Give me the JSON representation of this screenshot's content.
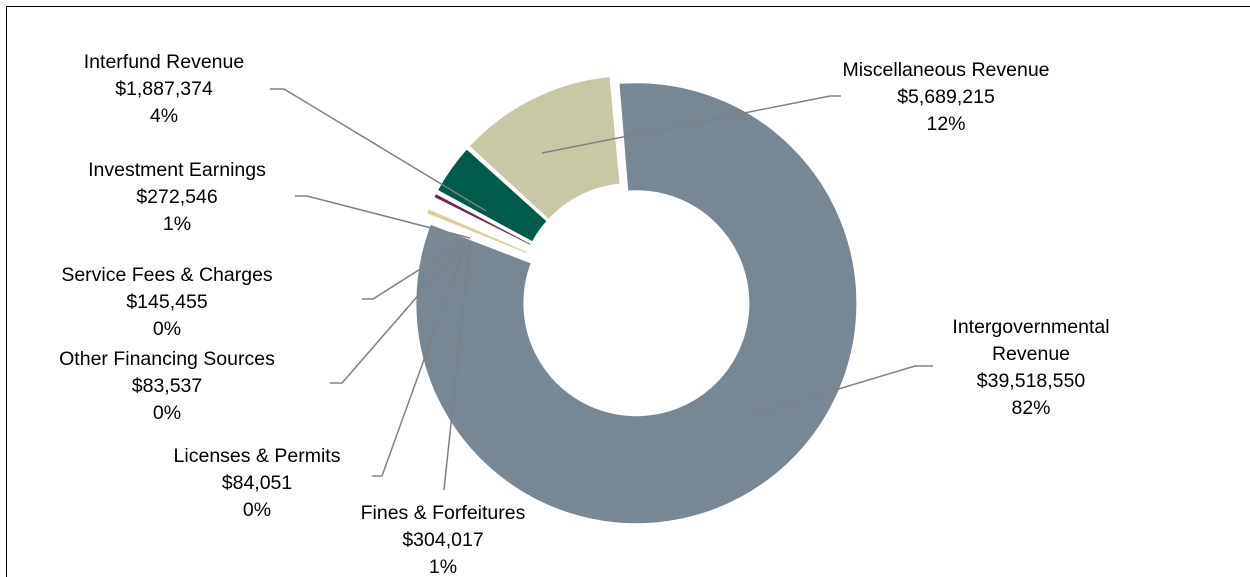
{
  "chart_data": {
    "type": "pie",
    "donut": true,
    "title": "",
    "unit": "$",
    "slices": [
      {
        "name": "Intergovernmental Revenue",
        "name_lines": [
          "Intergovernmental",
          "Revenue"
        ],
        "value": 39518550,
        "value_label": "$39,518,550",
        "percent_label": "82%",
        "color": "#788794"
      },
      {
        "name": "Fines & Forfeitures",
        "name_lines": [
          "Fines & Forfeitures"
        ],
        "value": 304017,
        "value_label": "$304,017",
        "percent_label": "1%",
        "color": "#d9cf9b"
      },
      {
        "name": "Licenses & Permits",
        "name_lines": [
          "Licenses & Permits"
        ],
        "value": 84051,
        "value_label": "$84,051",
        "percent_label": "0%",
        "color": "#6e8a7e"
      },
      {
        "name": "Other Financing Sources",
        "name_lines": [
          "Other Financing Sources"
        ],
        "value": 83537,
        "value_label": "$83,537",
        "percent_label": "0%",
        "color": "#a0a0a0"
      },
      {
        "name": "Service Fees & Charges",
        "name_lines": [
          "Service Fees & Charges"
        ],
        "value": 145455,
        "value_label": "$145,455",
        "percent_label": "0%",
        "color": "#2f7fb6"
      },
      {
        "name": "Investment Earnings",
        "name_lines": [
          "Investment Earnings"
        ],
        "value": 272546,
        "value_label": "$272,546",
        "percent_label": "1%",
        "color": "#6b2a4e"
      },
      {
        "name": "Interfund Revenue",
        "name_lines": [
          "Interfund Revenue"
        ],
        "value": 1887374,
        "value_label": "$1,887,374",
        "percent_label": "4%",
        "color": "#005b4a"
      },
      {
        "name": "Miscellaneous Revenue",
        "name_lines": [
          "Miscellaneous Revenue"
        ],
        "value": 5689215,
        "value_label": "$5,689,215",
        "percent_label": "12%",
        "color": "#c8c8a6"
      }
    ],
    "legend": "none",
    "data_labels": "outside-with-leader-lines"
  }
}
